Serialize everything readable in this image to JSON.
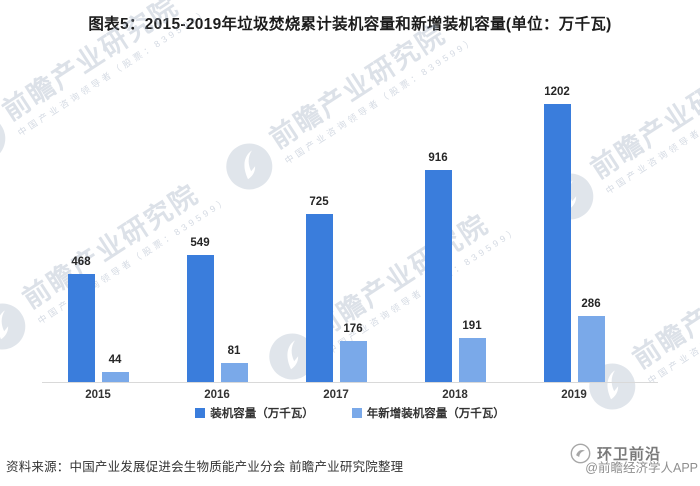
{
  "title": "图表5：2015-2019年垃圾焚烧累计装机容量和新增装机容量(单位：万千瓦)",
  "colors": {
    "series_primary": "#3A7DDC",
    "series_secondary": "#7AA9E9",
    "axis_line": "#D9D9D9",
    "watermark": "#99A8BC"
  },
  "chart_data": {
    "type": "bar",
    "categories": [
      "2015",
      "2016",
      "2017",
      "2018",
      "2019"
    ],
    "series": [
      {
        "name": "装机容量（万千瓦）",
        "values": [
          468,
          549,
          725,
          916,
          1202
        ],
        "color": "#3A7DDC"
      },
      {
        "name": "年新增装机容量（万千瓦）",
        "values": [
          44,
          81,
          176,
          191,
          286
        ],
        "color": "#7AA9E9"
      }
    ],
    "title": "图表5：2015-2019年垃圾焚烧累计装机容量和新增装机容量(单位：万千瓦)",
    "xlabel": "",
    "ylabel": "",
    "ylim": [
      0,
      1300
    ],
    "grid": false,
    "y_axis_visible": false,
    "value_labels": true,
    "legend_position": "bottom"
  },
  "watermark": {
    "main": "前瞻产业研究院",
    "sub": "中国产业咨询领导者（股票：839599）"
  },
  "footer": {
    "source": "资料来源：中国产业发展促进会生物质能产业分会 前瞻产业研究院整理",
    "brand": "环卫前沿",
    "credit": "@前瞻经济学人APP"
  }
}
